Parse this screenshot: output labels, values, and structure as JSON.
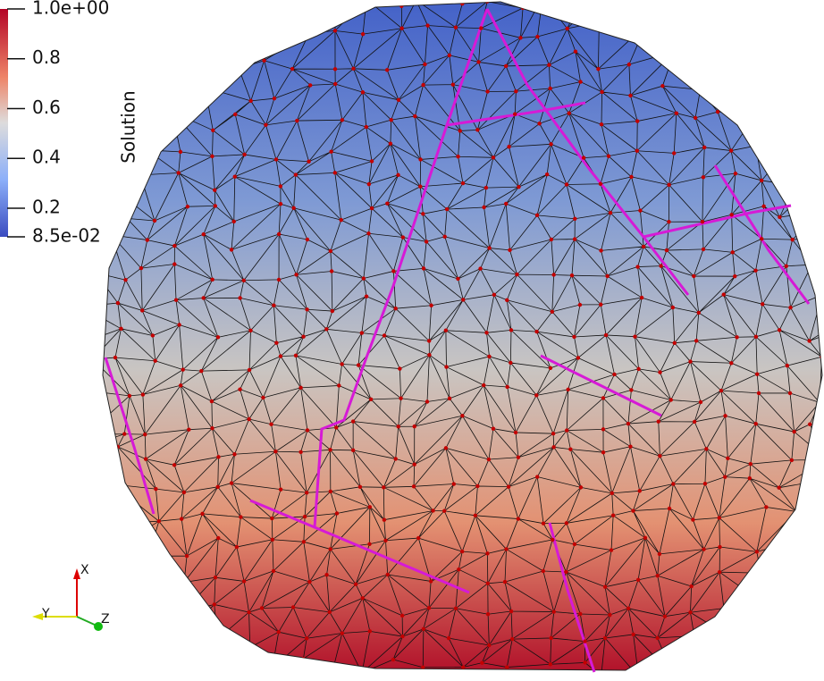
{
  "colorbar": {
    "title": "Solution",
    "range": [
      0.085,
      1
    ],
    "ticks": [
      {
        "value": 1,
        "label": "1.0e+00"
      },
      0.8,
      0.6,
      0.4,
      0.2,
      {
        "value": 0.085,
        "label": "8.5e-02"
      }
    ]
  },
  "triad": {
    "x": "X",
    "y": "Y",
    "z": "Z"
  }
}
